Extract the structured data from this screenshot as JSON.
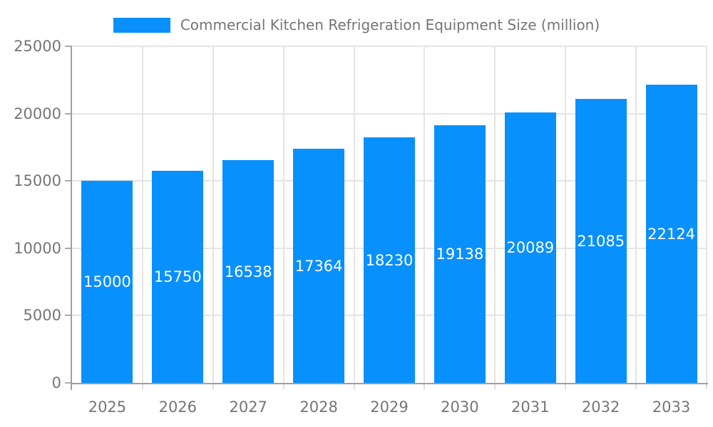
{
  "chart_data": {
    "type": "bar",
    "title": "Commercial Kitchen Refrigeration Equipment Size (million)",
    "categories": [
      "2025",
      "2026",
      "2027",
      "2028",
      "2029",
      "2030",
      "2031",
      "2032",
      "2033"
    ],
    "values": [
      15000,
      15750,
      16538,
      17364,
      18230,
      19138,
      20089,
      21085,
      22124
    ],
    "xlabel": "",
    "ylabel": "",
    "ylim": [
      0,
      25000
    ],
    "y_ticks": [
      0,
      5000,
      10000,
      15000,
      20000,
      25000
    ],
    "grid": "both",
    "legend_position": "top-center",
    "bar_label_position": "center-inside",
    "colors": {
      "bar": "#0890fc",
      "bar_label": "#ffffff",
      "axis_text": "#757575",
      "grid_line": "#e4e4e4",
      "axis_line": "#9e9e9e",
      "x_tick": "#dddddd",
      "y_tick": "#aaaaaa"
    }
  }
}
